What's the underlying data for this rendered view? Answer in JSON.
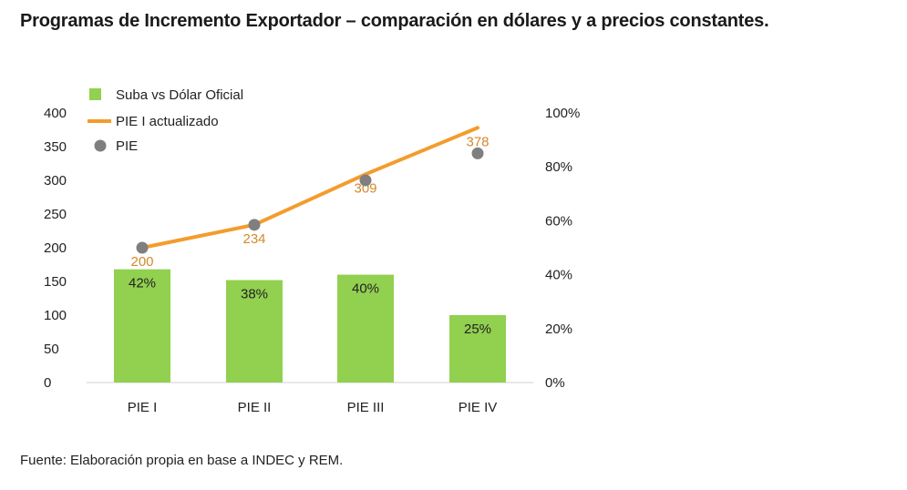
{
  "title": "Programas de Incremento Exportador – comparación en dólares y a precios constantes.",
  "source": "Fuente: Elaboración propia en base a INDEC y REM.",
  "colors": {
    "bar": "#92d050",
    "line": "#f39c2d",
    "dot": "#7f7f7f",
    "line_label": "#d3892b"
  },
  "chart_data": {
    "type": "bar+line+scatter",
    "categories": [
      "PIE I",
      "PIE II",
      "PIE III",
      "PIE IV"
    ],
    "left_axis": {
      "ticks": [
        "0",
        "50",
        "100",
        "150",
        "200",
        "250",
        "300",
        "350",
        "400"
      ],
      "ylim": [
        0,
        400
      ]
    },
    "right_axis": {
      "ticks": [
        "0%",
        "20%",
        "40%",
        "60%",
        "80%",
        "100%"
      ],
      "ylim": [
        0,
        100
      ]
    },
    "series": [
      {
        "name": "Suba vs Dólar Oficial",
        "type": "bar",
        "axis": "right",
        "values": [
          42,
          38,
          40,
          25
        ],
        "labels": [
          "42%",
          "38%",
          "40%",
          "25%"
        ]
      },
      {
        "name": "PIE I actualizado",
        "type": "line",
        "axis": "left",
        "values": [
          200,
          234,
          309,
          378
        ],
        "labels": [
          "200",
          "234",
          "309",
          "378"
        ]
      },
      {
        "name": "PIE",
        "type": "scatter",
        "axis": "left",
        "values": [
          200,
          234,
          300,
          340
        ]
      }
    ],
    "legend": "top-left"
  }
}
